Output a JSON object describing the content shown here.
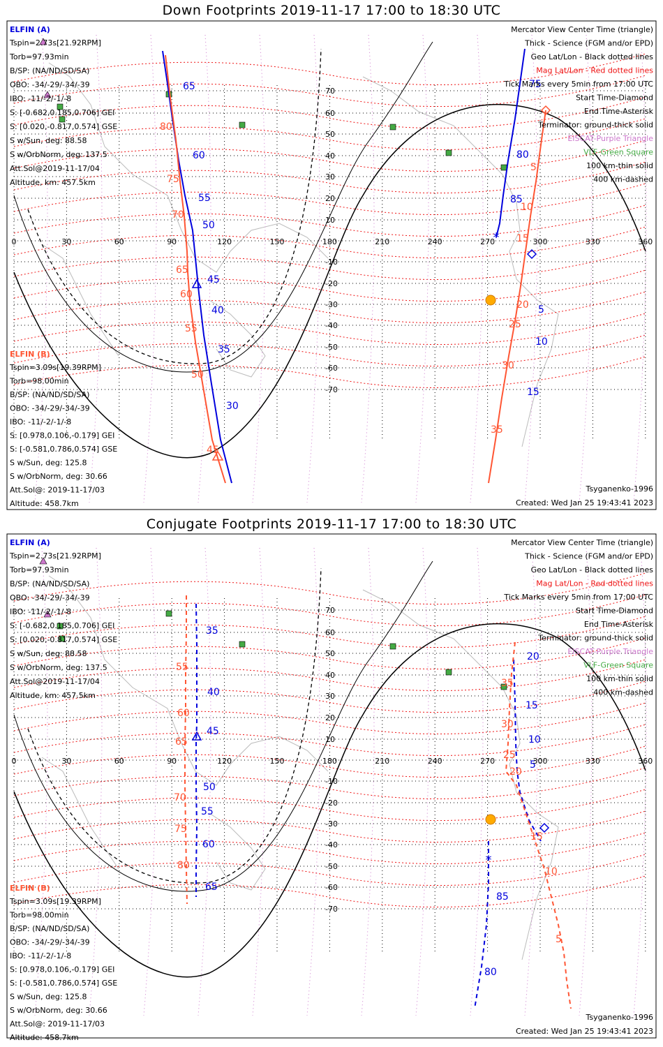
{
  "colors": {
    "elfin_a": "#0000dd",
    "elfin_b": "#ff5533",
    "mag_grid": "#ee1111",
    "geo_grid": "#000000",
    "eiscat": "#cc77cc",
    "vlf": "#44aa44",
    "tick_label": "#000000"
  },
  "lon_ticks": [
    "0",
    "30",
    "60",
    "90",
    "120",
    "150",
    "180",
    "210",
    "240",
    "270",
    "300",
    "330",
    "360"
  ],
  "lat_ticks": [
    "70",
    "60",
    "50",
    "40",
    "30",
    "20",
    "10",
    "-10",
    "-20",
    "-30",
    "-40",
    "-50",
    "-60",
    "-70"
  ],
  "legend": [
    {
      "text": "Mercator View Center Time (triangle)",
      "color": "#000000"
    },
    {
      "text": "Thick - Science (FGM and/or EPD)",
      "color": "#000000"
    },
    {
      "text": "Geo Lat/Lon - Black dotted lines",
      "color": "#000000"
    },
    {
      "text": "Mag Lat/Lon - Red dotted lines",
      "color": "#ee1111"
    },
    {
      "text": "Tick Marks every 5min from 17:00 UTC",
      "color": "#000000"
    },
    {
      "text": "Start Time-Diamond",
      "color": "#000000"
    },
    {
      "text": "End Time-Asterisk",
      "color": "#000000"
    },
    {
      "text": "Terminator: ground-thick solid",
      "color": "#000000"
    },
    {
      "text": "EISCAT-Purple Triangle",
      "color": "#cc77cc"
    },
    {
      "text": "VLF-Green Square",
      "color": "#44aa44"
    },
    {
      "text": "100 km-thin solid",
      "color": "#000000"
    },
    {
      "text": "400 km-dashed",
      "color": "#000000"
    }
  ],
  "elfin_a_info": {
    "header": "ELFIN (A)",
    "lines": [
      "Tspin=2.73s[21.92RPM]",
      "Torb=97.93min",
      "B/SP: (NA/ND/SD/SA)",
      "OBO: -34/-29/-34/-39",
      "IBO: -11/-2/-1/-8",
      "S: [-0.682,0.185,0.706] GEI",
      "S: [0.020,-0.817,0.574] GSE",
      "S w/Sun, deg: 88.58",
      "S w/OrbNorm, deg: 137.5",
      "Att.Sol@2019-11-17/04",
      "Altitude, km: 457.5km"
    ]
  },
  "elfin_b_info": {
    "header": "ELFIN (B)",
    "lines": [
      "Tspin=3.09s[19.39RPM]",
      "Torb=98.00min",
      "B/SP: (NA/ND/SD/SA)",
      "OBO: -34/-29/-34/-39",
      "IBO: -11/-2/-1/-8",
      "S: [0.978,0.106,-0.179] GEI",
      "S: [-0.581,0.786,0.574] GSE",
      "S w/Sun, deg: 125.8",
      "S w/OrbNorm, deg: 30.66",
      "Att.Sol@: 2019-11-17/03",
      "Altitude: 458.7km"
    ]
  },
  "model_label": "Tsyganenko-1996",
  "created_label": "Created: Wed Jan 25 19:43:41 2023",
  "panels": [
    {
      "title": "Down Footprints 2019-11-17 17:00 to 18:30 UTC",
      "tracks": [
        {
          "sat": "a",
          "dashed": false,
          "labels": [
            [
              "65",
              "262",
              "128"
            ],
            [
              "60",
              "276",
              "227"
            ],
            [
              "55",
              "284",
              "288"
            ],
            [
              "50",
              "290",
              "327"
            ],
            [
              "45",
              "297",
              "405"
            ],
            [
              "40",
              "303",
              "449"
            ],
            [
              "35",
              "312",
              "505"
            ],
            [
              "30",
              "324",
              "586"
            ]
          ]
        },
        {
          "sat": "b",
          "dashed": false,
          "labels": [
            [
              "80",
              "229",
              "186"
            ],
            [
              "75",
              "239",
              "261"
            ],
            [
              "70",
              "246",
              "312"
            ],
            [
              "65",
              "252",
              "391"
            ],
            [
              "60",
              "258",
              "426"
            ],
            [
              "55",
              "265",
              "475"
            ],
            [
              "50",
              "274",
              "541"
            ],
            [
              "45",
              "296",
              "649"
            ]
          ]
        },
        {
          "sat": "a",
          "dashed": false,
          "labels": [
            [
              "75",
              "758",
              "125"
            ],
            [
              "80",
              "740",
              "226"
            ],
            [
              "85",
              "731",
              "290"
            ],
            [
              "5",
              "771",
              "448"
            ],
            [
              "10",
              "767",
              "494"
            ],
            [
              "15",
              "755",
              "566"
            ]
          ]
        },
        {
          "sat": "b",
          "dashed": false,
          "labels": [
            [
              "5",
              "760",
              "244"
            ],
            [
              "10",
              "746",
              "301"
            ],
            [
              "15",
              "740",
              "346"
            ],
            [
              "20",
              "740",
              "441"
            ],
            [
              "25",
              "729",
              "469"
            ],
            [
              "30",
              "719",
              "528"
            ],
            [
              "35",
              "703",
              "620"
            ]
          ]
        }
      ]
    },
    {
      "title": "Conjugate Footprints 2019-11-17 17:00 to 18:30 UTC",
      "tracks": [
        {
          "sat": "a",
          "dashed": true,
          "labels": [
            [
              "35",
              "295",
              "908"
            ],
            [
              "40",
              "297",
              "996"
            ],
            [
              "45",
              "296",
              "1052"
            ],
            [
              "50",
              "291",
              "1132"
            ],
            [
              "55",
              "288",
              "1167"
            ],
            [
              "60",
              "290",
              "1214"
            ],
            [
              "65",
              "294",
              "1275"
            ]
          ]
        },
        {
          "sat": "b",
          "dashed": true,
          "labels": [
            [
              "55",
              "252",
              "960"
            ],
            [
              "60",
              "254",
              "1026"
            ],
            [
              "65",
              "251",
              "1067"
            ],
            [
              "70",
              "249",
              "1147"
            ],
            [
              "75",
              "250",
              "1192"
            ],
            [
              "80",
              "254",
              "1244"
            ]
          ]
        },
        {
          "sat": "a",
          "dashed": true,
          "labels": [
            [
              "20",
              "755",
              "945"
            ],
            [
              "15",
              "753",
              "1015"
            ],
            [
              "10",
              "757",
              "1064"
            ],
            [
              "5",
              "759",
              "1100"
            ],
            [
              "85",
              "711",
              "1289"
            ],
            [
              "80",
              "694",
              "1397"
            ]
          ]
        },
        {
          "sat": "b",
          "dashed": true,
          "labels": [
            [
              "35",
              "718",
              "983"
            ],
            [
              "30",
              "718",
              "1042"
            ],
            [
              "25",
              "721",
              "1086"
            ],
            [
              "20",
              "730",
              "1110"
            ],
            [
              "15",
              "760",
              "1203"
            ],
            [
              "10",
              "781",
              "1253"
            ],
            [
              "5",
              "796",
              "1350"
            ]
          ]
        }
      ]
    }
  ]
}
